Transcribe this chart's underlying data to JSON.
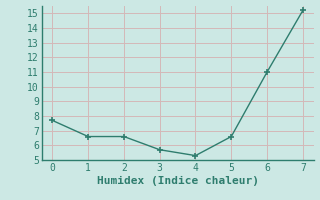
{
  "x": [
    0,
    1,
    2,
    3,
    4,
    5,
    6,
    7
  ],
  "y": [
    7.7,
    6.6,
    6.6,
    5.7,
    5.3,
    6.6,
    11.0,
    15.2
  ],
  "xlabel": "Humidex (Indice chaleur)",
  "ylim": [
    5,
    15.5
  ],
  "xlim": [
    -0.3,
    7.3
  ],
  "yticks": [
    5,
    6,
    7,
    8,
    9,
    10,
    11,
    12,
    13,
    14,
    15
  ],
  "xticks": [
    0,
    1,
    2,
    3,
    4,
    5,
    6,
    7
  ],
  "line_color": "#2e7d6e",
  "marker": "+",
  "marker_size": 5,
  "line_width": 1.0,
  "bg_color": "#cce8e4",
  "grid_color": "#d4b8b8",
  "spine_color": "#2e7d6e",
  "font_family": "monospace",
  "xlabel_fontsize": 8,
  "tick_fontsize": 7
}
